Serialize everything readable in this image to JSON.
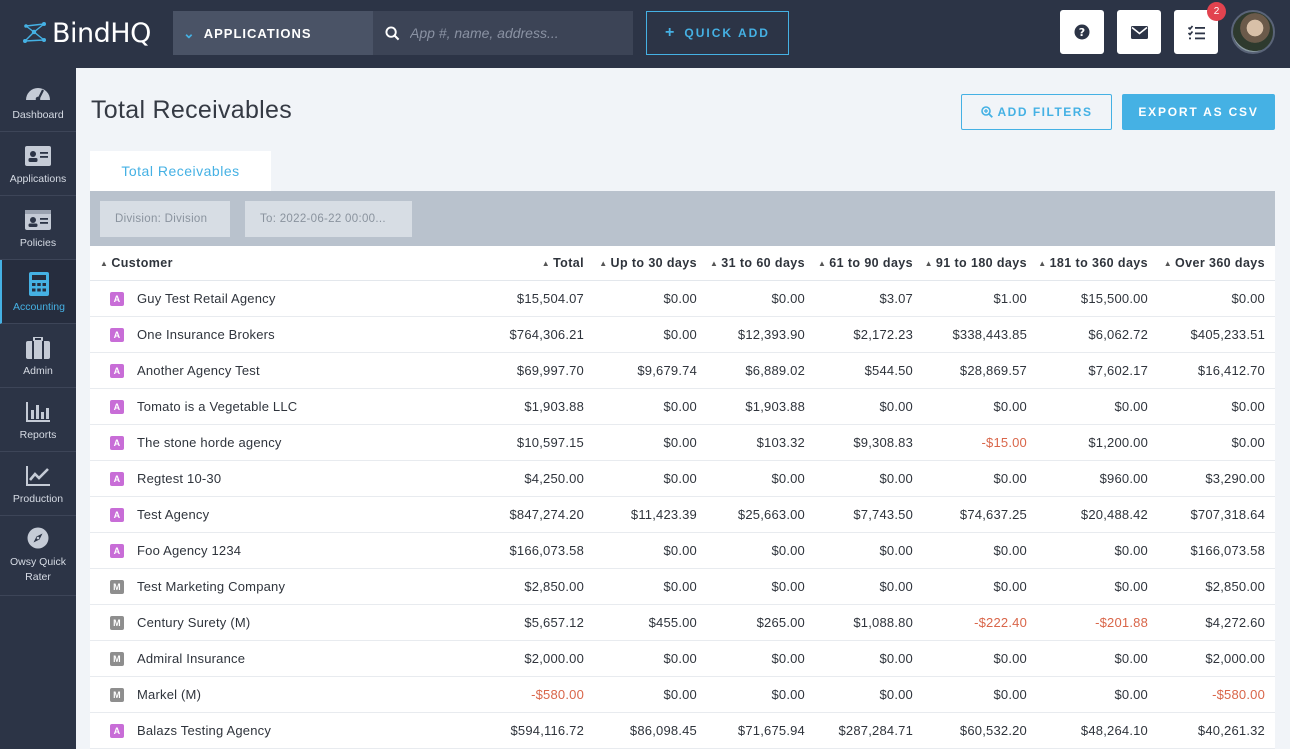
{
  "brand": {
    "name": "BindHQ"
  },
  "topbar": {
    "app_select": "APPLICATIONS",
    "search_placeholder": "App #, name, address...",
    "quick_add": "QUICK ADD",
    "notification_count": "2"
  },
  "sidebar": {
    "items": [
      {
        "label": "Dashboard",
        "icon": "dashboard-gauge-icon"
      },
      {
        "label": "Applications",
        "icon": "id-card-icon"
      },
      {
        "label": "Policies",
        "icon": "policy-card-icon"
      },
      {
        "label": "Accounting",
        "icon": "calculator-icon",
        "active": true
      },
      {
        "label": "Admin",
        "icon": "briefcase-icon"
      },
      {
        "label": "Reports",
        "icon": "bar-chart-icon"
      },
      {
        "label": "Production",
        "icon": "line-chart-icon"
      },
      {
        "label": "Owsy Quick Rater",
        "icon": "compass-icon"
      }
    ]
  },
  "page": {
    "title": "Total Receivables",
    "add_filters": "ADD FILTERS",
    "export_csv": "EXPORT AS CSV",
    "tab": "Total Receivables",
    "filters": {
      "division": "Division: Division",
      "to": "To: 2022-06-22 00:00..."
    }
  },
  "colors": {
    "accent": "#45b1e4",
    "topbar": "#2c3446",
    "negative": "#d9664a",
    "badge_agency": "#c86dd7",
    "badge_marketing": "#8e8e8e"
  },
  "table": {
    "columns": [
      "Customer",
      "Total",
      "Up to 30 days",
      "31 to 60 days",
      "61 to 90 days",
      "91 to 180 days",
      "181 to 360 days",
      "Over 360 days"
    ],
    "rows": [
      {
        "type": "A",
        "customer": "Guy Test Retail Agency",
        "values": [
          "$15,504.07",
          "$0.00",
          "$0.00",
          "$3.07",
          "$1.00",
          "$15,500.00",
          "$0.00"
        ]
      },
      {
        "type": "A",
        "customer": "One Insurance Brokers",
        "values": [
          "$764,306.21",
          "$0.00",
          "$12,393.90",
          "$2,172.23",
          "$338,443.85",
          "$6,062.72",
          "$405,233.51"
        ]
      },
      {
        "type": "A",
        "customer": "Another Agency Test",
        "values": [
          "$69,997.70",
          "$9,679.74",
          "$6,889.02",
          "$544.50",
          "$28,869.57",
          "$7,602.17",
          "$16,412.70"
        ]
      },
      {
        "type": "A",
        "customer": "Tomato is a Vegetable LLC",
        "values": [
          "$1,903.88",
          "$0.00",
          "$1,903.88",
          "$0.00",
          "$0.00",
          "$0.00",
          "$0.00"
        ]
      },
      {
        "type": "A",
        "customer": "The stone horde agency",
        "values": [
          "$10,597.15",
          "$0.00",
          "$103.32",
          "$9,308.83",
          "-$15.00",
          "$1,200.00",
          "$0.00"
        ]
      },
      {
        "type": "A",
        "customer": "Regtest 10-30",
        "values": [
          "$4,250.00",
          "$0.00",
          "$0.00",
          "$0.00",
          "$0.00",
          "$960.00",
          "$3,290.00"
        ]
      },
      {
        "type": "A",
        "customer": "Test Agency",
        "values": [
          "$847,274.20",
          "$11,423.39",
          "$25,663.00",
          "$7,743.50",
          "$74,637.25",
          "$20,488.42",
          "$707,318.64"
        ]
      },
      {
        "type": "A",
        "customer": "Foo Agency 1234",
        "values": [
          "$166,073.58",
          "$0.00",
          "$0.00",
          "$0.00",
          "$0.00",
          "$0.00",
          "$166,073.58"
        ]
      },
      {
        "type": "M",
        "customer": "Test Marketing Company",
        "values": [
          "$2,850.00",
          "$0.00",
          "$0.00",
          "$0.00",
          "$0.00",
          "$0.00",
          "$2,850.00"
        ]
      },
      {
        "type": "M",
        "customer": "Century Surety (M)",
        "values": [
          "$5,657.12",
          "$455.00",
          "$265.00",
          "$1,088.80",
          "-$222.40",
          "-$201.88",
          "$4,272.60"
        ]
      },
      {
        "type": "M",
        "customer": "Admiral Insurance",
        "values": [
          "$2,000.00",
          "$0.00",
          "$0.00",
          "$0.00",
          "$0.00",
          "$0.00",
          "$2,000.00"
        ]
      },
      {
        "type": "M",
        "customer": "Markel (M)",
        "values": [
          "-$580.00",
          "$0.00",
          "$0.00",
          "$0.00",
          "$0.00",
          "$0.00",
          "-$580.00"
        ]
      },
      {
        "type": "A",
        "customer": "Balazs Testing Agency",
        "values": [
          "$594,116.72",
          "$86,098.45",
          "$71,675.94",
          "$287,284.71",
          "$60,532.20",
          "$48,264.10",
          "$40,261.32"
        ]
      }
    ]
  }
}
